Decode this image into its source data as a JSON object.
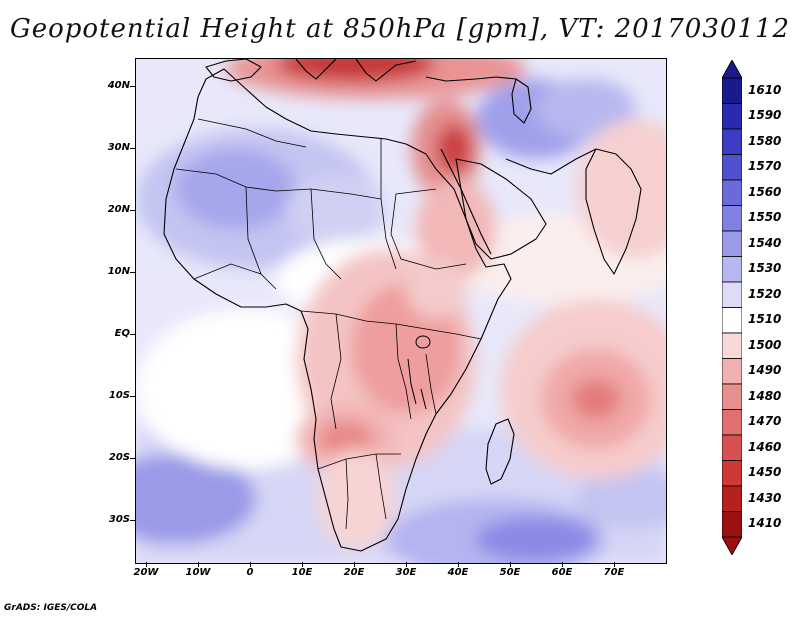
{
  "title": "Geopotential Height at 850hPa [gpm], VT: 2017030112",
  "footer": "GrADS: IGES/COLA",
  "map": {
    "variable": "Geopotential Height at 850hPa",
    "units": "gpm",
    "valid_time": "2017030112",
    "lat_labels": [
      "40N",
      "30N",
      "20N",
      "10N",
      "EQ",
      "10S",
      "20S",
      "30S"
    ],
    "lon_labels": [
      "20W",
      "10W",
      "0",
      "10E",
      "20E",
      "30E",
      "40E",
      "50E",
      "60E",
      "70E"
    ]
  },
  "colorbar": {
    "levels": [
      "1610",
      "1590",
      "1580",
      "1570",
      "1560",
      "1550",
      "1540",
      "1530",
      "1520",
      "1510",
      "1500",
      "1490",
      "1480",
      "1470",
      "1460",
      "1450",
      "1430",
      "1410"
    ],
    "colors": [
      "#1a1a8c",
      "#2a2ab0",
      "#3c3cc4",
      "#5050d0",
      "#6a6ad8",
      "#8080e0",
      "#9a9ae8",
      "#b8b8f0",
      "#dcdcf8",
      "#ffffff",
      "#f8d8d8",
      "#f0b0b0",
      "#e89090",
      "#e07070",
      "#d85050",
      "#d03838",
      "#b82020",
      "#9c1010"
    ]
  },
  "colors": {
    "high_blue": "#8a8ae6",
    "mid_blue": "#c4c4f2",
    "pale_blue": "#e6e6fa",
    "neutral": "#ffffff",
    "pale_red": "#f8d6d6",
    "mid_red": "#ee9e9e",
    "deep_red": "#c83030"
  }
}
